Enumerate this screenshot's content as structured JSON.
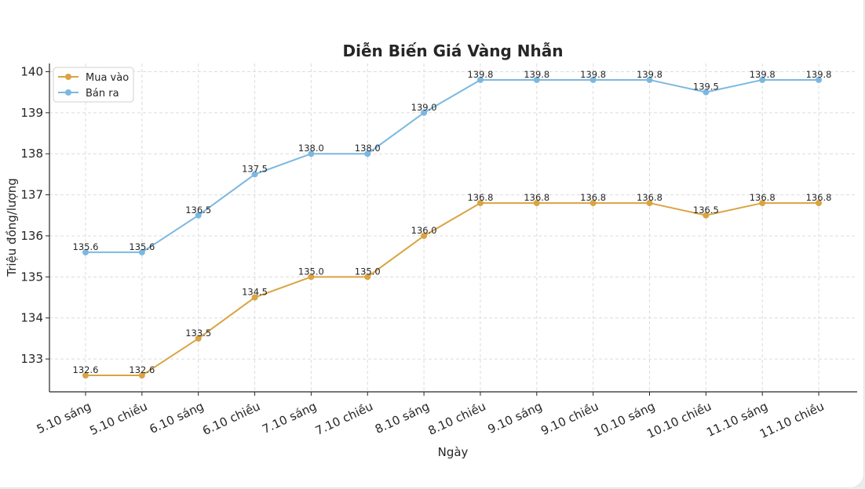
{
  "chart_data": {
    "type": "line",
    "title": "Diễn Biến Giá Vàng Nhẫn",
    "xlabel": "Ngày",
    "ylabel": "Triệu đồng/lượng",
    "categories": [
      "5.10 sáng",
      "5.10 chiều",
      "6.10 sáng",
      "6.10 chiều",
      "7.10 sáng",
      "7.10 chiều",
      "8.10 sáng",
      "8.10 chiều",
      "9.10 sáng",
      "9.10 chiều",
      "10.10 sáng",
      "10.10 chiều",
      "11.10 sáng",
      "11.10 chiều"
    ],
    "series": [
      {
        "name": "Mua vào",
        "color": "#D9A441",
        "values": [
          132.6,
          132.6,
          133.5,
          134.5,
          135.0,
          135.0,
          136.0,
          136.8,
          136.8,
          136.8,
          136.8,
          136.5,
          136.8,
          136.8
        ]
      },
      {
        "name": "Bán ra",
        "color": "#7BB8E0",
        "values": [
          135.6,
          135.6,
          136.5,
          137.5,
          138.0,
          138.0,
          139.0,
          139.8,
          139.8,
          139.8,
          139.8,
          139.5,
          139.8,
          139.8
        ]
      }
    ],
    "ylim": [
      132.2,
      140.2
    ],
    "yticks": [
      133,
      134,
      135,
      136,
      137,
      138,
      139,
      140
    ],
    "grid": true,
    "legend": "top-left"
  }
}
